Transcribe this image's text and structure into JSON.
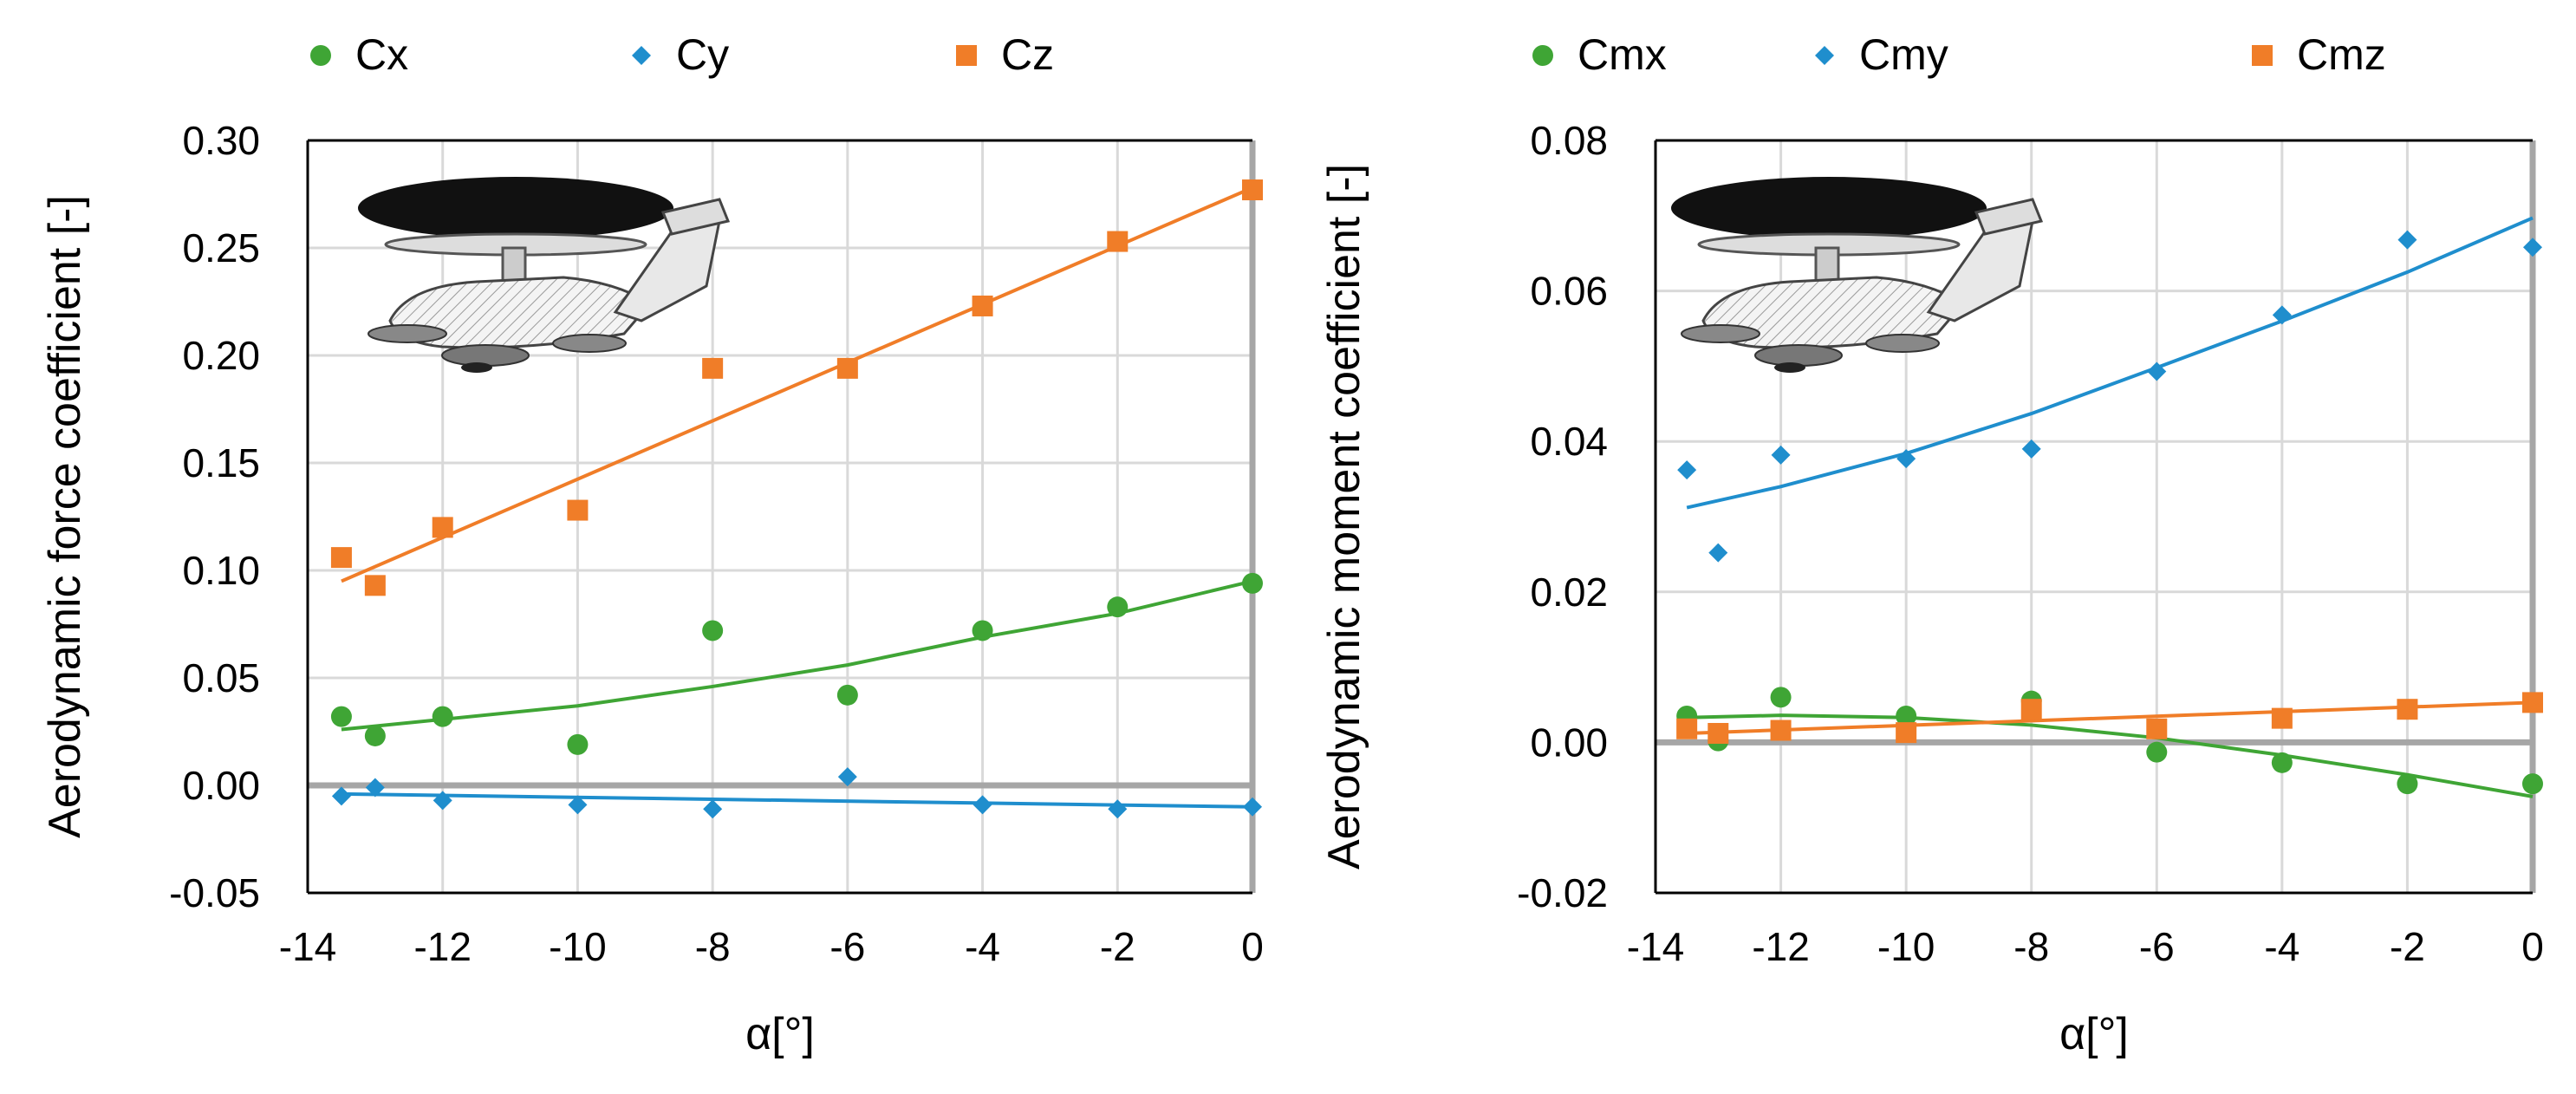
{
  "chart_data": [
    {
      "type": "scatter",
      "title": "",
      "xlabel": "α[°]",
      "ylabel": "Aerodynamic force coefficient [-]",
      "xlim": [
        -14,
        0
      ],
      "ylim": [
        -0.05,
        0.3
      ],
      "xticks": [
        -14,
        -12,
        -10,
        -8,
        -6,
        -4,
        -2,
        0
      ],
      "xtick_labels": [
        "-14",
        "-12",
        "-10",
        "-8",
        "-6",
        "-4",
        "-2",
        "0"
      ],
      "yticks": [
        -0.05,
        0.0,
        0.05,
        0.1,
        0.15,
        0.2,
        0.25,
        0.3
      ],
      "ytick_labels": [
        "-0.05",
        "0.00",
        "0.05",
        "0.10",
        "0.15",
        "0.20",
        "0.25",
        "0.30"
      ],
      "grid": true,
      "legend": "top",
      "inset_image": "aircraft-with-rotodome",
      "series": [
        {
          "name": "Cx",
          "color": "#3fa535",
          "marker": "circle",
          "x": [
            -13.5,
            -13,
            -12,
            -10,
            -8,
            -6,
            -4,
            -2,
            0
          ],
          "values": [
            0.032,
            0.023,
            0.032,
            0.019,
            0.072,
            0.042,
            0.072,
            0.083,
            0.094
          ],
          "trend": {
            "type": "poly2",
            "x": [
              -13.5,
              -10,
              -8,
              -6,
              -4,
              -2,
              0
            ],
            "y": [
              0.026,
              0.037,
              0.046,
              0.056,
              0.069,
              0.08,
              0.095
            ]
          }
        },
        {
          "name": "Cy",
          "color": "#1f8ecd",
          "marker": "diamond",
          "x": [
            -13.5,
            -13,
            -12,
            -10,
            -8,
            -6,
            -4,
            -2,
            0
          ],
          "values": [
            -0.005,
            -0.001,
            -0.007,
            -0.009,
            -0.011,
            0.004,
            -0.009,
            -0.011,
            -0.01
          ],
          "trend": {
            "type": "linear",
            "x": [
              -13.5,
              0
            ],
            "y": [
              -0.004,
              -0.01
            ]
          }
        },
        {
          "name": "Cz",
          "color": "#f07d28",
          "marker": "square",
          "x": [
            -13.5,
            -13,
            -12,
            -10,
            -8,
            -6,
            -4,
            -2,
            0
          ],
          "values": [
            0.106,
            0.093,
            0.12,
            0.128,
            0.194,
            0.194,
            0.223,
            0.253,
            0.277
          ],
          "trend": {
            "type": "linear",
            "x": [
              -13.5,
              0
            ],
            "y": [
              0.095,
              0.278
            ]
          }
        }
      ]
    },
    {
      "type": "scatter",
      "title": "",
      "xlabel": "α[°]",
      "ylabel": "Aerodynamic moment coefficient [-]",
      "xlim": [
        -14,
        0
      ],
      "ylim": [
        -0.02,
        0.08
      ],
      "xticks": [
        -14,
        -12,
        -10,
        -8,
        -6,
        -4,
        -2,
        0
      ],
      "xtick_labels": [
        "-14",
        "-12",
        "-10",
        "-8",
        "-6",
        "-4",
        "-2",
        "0"
      ],
      "yticks": [
        -0.02,
        0.0,
        0.02,
        0.04,
        0.06,
        0.08
      ],
      "ytick_labels": [
        "-0.02",
        "0.00",
        "0.02",
        "0.04",
        "0.06",
        "0.08"
      ],
      "grid": true,
      "legend": "top",
      "inset_image": "aircraft-with-rotodome",
      "series": [
        {
          "name": "Cmx",
          "color": "#3fa535",
          "marker": "circle",
          "x": [
            -13.5,
            -13,
            -12,
            -10,
            -8,
            -6,
            -4,
            -2,
            0
          ],
          "values": [
            0.0035,
            0.0002,
            0.006,
            0.0035,
            0.0055,
            -0.0013,
            -0.0027,
            -0.0055,
            -0.0055
          ],
          "trend": {
            "type": "poly2",
            "x": [
              -13.5,
              -12,
              -10,
              -8,
              -6,
              -4,
              -2,
              0
            ],
            "y": [
              0.0033,
              0.0036,
              0.0033,
              0.0023,
              0.0006,
              -0.0017,
              -0.0043,
              -0.0072
            ]
          }
        },
        {
          "name": "Cmy",
          "color": "#1f8ecd",
          "marker": "diamond",
          "x": [
            -13.5,
            -13,
            -12,
            -10,
            -8,
            -6,
            -4,
            -2,
            0
          ],
          "values": [
            0.0362,
            0.0252,
            0.0382,
            0.0377,
            0.039,
            0.0493,
            0.0568,
            0.0668,
            0.0658
          ],
          "trend": {
            "type": "poly2",
            "x": [
              -13.5,
              -12,
              -10,
              -8,
              -6,
              -4,
              -2,
              0
            ],
            "y": [
              0.0312,
              0.034,
              0.0384,
              0.0437,
              0.0498,
              0.056,
              0.0625,
              0.0697
            ]
          }
        },
        {
          "name": "Cmz",
          "color": "#f07d28",
          "marker": "square",
          "x": [
            -13.5,
            -13,
            -12,
            -10,
            -8,
            -6,
            -4,
            -2,
            0
          ],
          "values": [
            0.0018,
            0.0012,
            0.0016,
            0.0013,
            0.0044,
            0.0018,
            0.0032,
            0.0044,
            0.0053
          ],
          "trend": {
            "type": "linear",
            "x": [
              -13.5,
              0
            ],
            "y": [
              0.0012,
              0.0053
            ]
          }
        }
      ]
    }
  ]
}
